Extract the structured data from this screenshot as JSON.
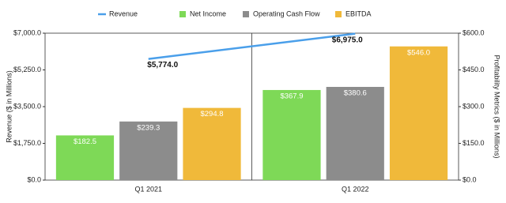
{
  "chart_data": {
    "type": "bar",
    "categories": [
      "Q1 2021",
      "Q1 2022"
    ],
    "series": [
      {
        "name": "Revenue",
        "type": "line",
        "color": "#4a9fea",
        "values": [
          5774.0,
          6975.0
        ],
        "value_labels": [
          "$5,774.0",
          "$6,975.0"
        ]
      },
      {
        "name": "Net Income",
        "color": "#7ed957",
        "axis": "y2",
        "values": [
          182.5,
          367.9
        ],
        "value_labels": [
          "$182.5",
          "$367.9"
        ]
      },
      {
        "name": "Operating Cash Flow",
        "color": "#8c8c8c",
        "axis": "y2",
        "values": [
          239.3,
          380.6
        ],
        "value_labels": [
          "$239.3",
          "$380.6"
        ]
      },
      {
        "name": "EBITDA",
        "color": "#f0b93a",
        "axis": "y2",
        "values": [
          294.8,
          546.0
        ],
        "value_labels": [
          "$294.8",
          "$546.0"
        ]
      }
    ],
    "ylabel": "Revenue ($ in Millions)",
    "y2label": "Profitability Metrics ($ in Millions)",
    "ylim": [
      0,
      7000
    ],
    "yticks": [
      {
        "value": 0,
        "label": "$0.0"
      },
      {
        "value": 1750,
        "label": "$1,750.0"
      },
      {
        "value": 3500,
        "label": "$3,500.0"
      },
      {
        "value": 5250,
        "label": "$5,250.0"
      },
      {
        "value": 7000,
        "label": "$7,000.0"
      }
    ],
    "y2lim": [
      0,
      600
    ],
    "y2ticks": [
      {
        "value": 0,
        "label": "$0.0"
      },
      {
        "value": 150,
        "label": "$150.0"
      },
      {
        "value": 300,
        "label": "$300.0"
      },
      {
        "value": 450,
        "label": "$450.0"
      },
      {
        "value": 600,
        "label": "$600.0"
      }
    ],
    "legend": "top"
  }
}
